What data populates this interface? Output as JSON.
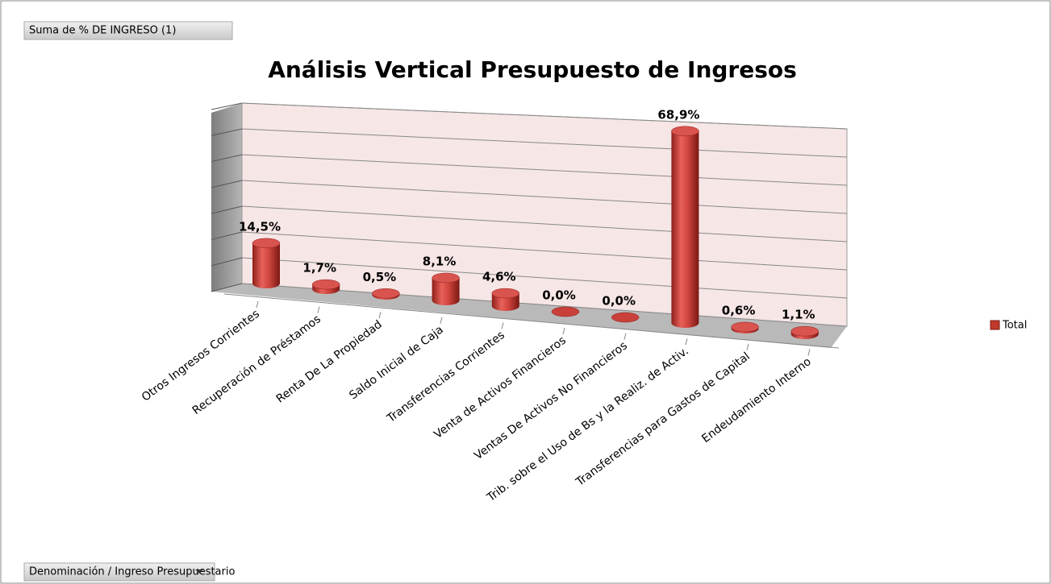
{
  "chart_data": {
    "type": "bar3d",
    "title": "Análisis Vertical Presupuesto de Ingresos",
    "field_button": "Suma de % DE INGRESO (1)",
    "axis_button": "Denominación / Ingreso Presupuestario",
    "categories": [
      "Otros Ingresos Corrientes",
      "Recuperación de Préstamos",
      "Renta De La Propiedad",
      "Saldo Inicial de Caja",
      "Transferencias Corrientes",
      "Venta de Activos Financieros",
      "Ventas De Activos No Financieros",
      "Trib. sobre el Uso de Bs y la Realiz. de Activ.",
      "Transferencias para Gastos de Capital",
      "Endeudamiento Interno"
    ],
    "series": [
      {
        "name": "Total",
        "color": "#c0392b",
        "values": [
          14.5,
          1.7,
          0.5,
          8.1,
          4.6,
          0.0,
          0.0,
          68.9,
          0.6,
          1.1
        ],
        "value_labels": [
          "14,5%",
          "1,7%",
          "0,5%",
          "8,1%",
          "4,6%",
          "0,0%",
          "0,0%",
          "68,9%",
          "0,6%",
          "1,1%"
        ]
      }
    ],
    "ylim": [
      0,
      70
    ],
    "yticks": [
      0,
      10,
      20,
      30,
      40,
      50,
      60,
      70
    ],
    "grid": true,
    "legend": "right"
  }
}
